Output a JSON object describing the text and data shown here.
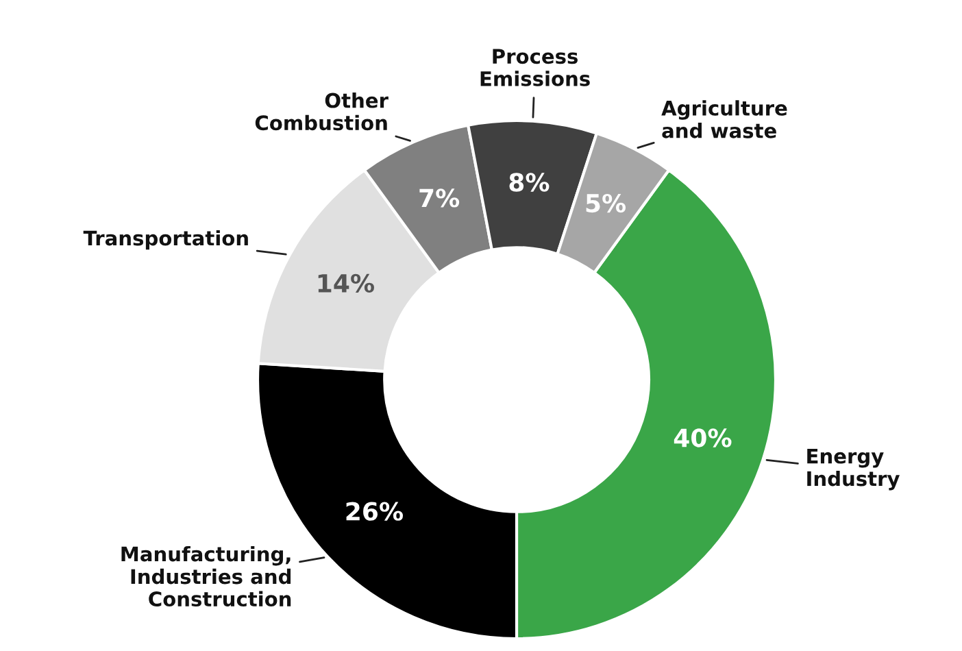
{
  "chart_data": {
    "type": "donut",
    "categories": [
      "Energy\nIndustry",
      "Manufacturing,\nIndustries and\nConstruction",
      "Transportation",
      "Other\nCombustion",
      "Process\nEmissions",
      "Agriculture\nand waste"
    ],
    "values": [
      40,
      26,
      14,
      7,
      8,
      5
    ],
    "colors": [
      "#3aa648",
      "#000000",
      "#e0e0e0",
      "#808080",
      "#404040",
      "#a6a6a6"
    ],
    "value_labels": [
      "40%",
      "26%",
      "14%",
      "7%",
      "8%",
      "5%"
    ],
    "legend": false
  }
}
